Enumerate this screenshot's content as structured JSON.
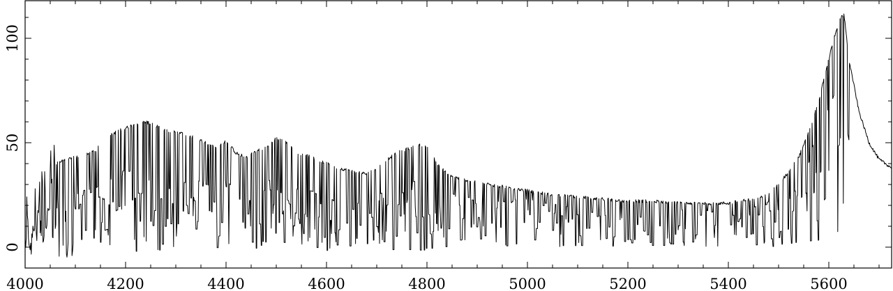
{
  "chart_data": {
    "type": "line",
    "title": "",
    "xlabel": "",
    "ylabel": "",
    "xlim": [
      4000,
      5725
    ],
    "ylim": [
      -10,
      118
    ],
    "x_ticks": [
      {
        "value": 4000,
        "label": "4000"
      },
      {
        "value": 4200,
        "label": "4200"
      },
      {
        "value": 4400,
        "label": "4400"
      },
      {
        "value": 4600,
        "label": "4600"
      },
      {
        "value": 4800,
        "label": "4800"
      },
      {
        "value": 5000,
        "label": "5000"
      },
      {
        "value": 5200,
        "label": "5200"
      },
      {
        "value": 5400,
        "label": "5400"
      },
      {
        "value": 5600,
        "label": "5600"
      }
    ],
    "y_ticks": [
      {
        "value": 0,
        "label": "0"
      },
      {
        "value": 50,
        "label": "50"
      },
      {
        "value": 100,
        "label": "100"
      }
    ],
    "x_minor_step": 50,
    "y_minor_step": 10,
    "grid": false,
    "series": [
      {
        "x": [
          4000,
          4020,
          4040,
          4060,
          4080,
          4100,
          4120,
          4140,
          4160,
          4180,
          4200,
          4220,
          4240,
          4260,
          4280,
          4300,
          4320,
          4340,
          4360,
          4380,
          4400,
          4420,
          4440,
          4460,
          4480,
          4500,
          4520,
          4540,
          4560,
          4580,
          4600,
          4620,
          4640,
          4660,
          4680,
          4700,
          4720,
          4740,
          4760,
          4780,
          4800,
          4820,
          4840,
          4860,
          4880,
          4900,
          4950,
          5000,
          5050,
          5100,
          5150,
          5200,
          5250,
          5300,
          5350,
          5400,
          5450,
          5480,
          5500,
          5520,
          5540,
          5560,
          5580,
          5600,
          5610,
          5620,
          5630,
          5640,
          5660,
          5680,
          5700,
          5725
        ],
        "y": [
          15,
          30,
          35,
          40,
          42,
          43,
          44,
          46,
          52,
          55,
          57,
          59,
          60,
          58,
          56,
          55,
          54,
          52,
          50,
          48,
          51,
          45,
          43,
          46,
          48,
          52,
          50,
          45,
          44,
          42,
          40,
          38,
          37,
          36,
          35,
          38,
          42,
          45,
          47,
          49,
          48,
          40,
          35,
          33,
          32,
          31,
          29,
          27,
          25,
          24,
          23,
          22,
          22,
          21,
          21,
          21,
          23,
          26,
          30,
          36,
          43,
          55,
          70,
          90,
          100,
          108,
          112,
          90,
          65,
          50,
          42,
          38
        ],
        "notes_absorption": true
      }
    ]
  }
}
